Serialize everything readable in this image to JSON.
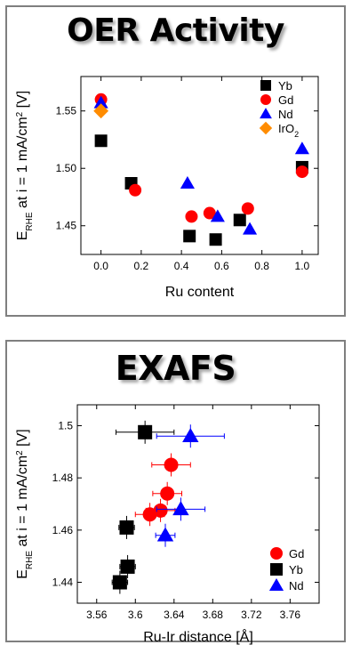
{
  "chart_data": [
    {
      "type": "scatter",
      "title": "OER Activity",
      "xlabel": "Ru content",
      "ylabel_main": "E",
      "ylabel_sub": "RHE",
      "ylabel_mid": " at i = 1 mA/cm",
      "ylabel_sup": "2",
      "ylabel_end": " [V]",
      "xlim": [
        -0.1,
        1.08
      ],
      "ylim": [
        1.425,
        1.58
      ],
      "xticks": [
        "0.0",
        "0.2",
        "0.4",
        "0.6",
        "0.8",
        "1.0"
      ],
      "xtick_values": [
        0.0,
        0.2,
        0.4,
        0.6,
        0.8,
        1.0
      ],
      "yticks": [
        "1.45",
        "1.50",
        "1.55"
      ],
      "ytick_values": [
        1.45,
        1.5,
        1.55
      ],
      "legend_position": "top-right",
      "series": [
        {
          "name": "Yb",
          "marker": "square",
          "color": "#000000",
          "points": [
            [
              0.0,
              1.524
            ],
            [
              0.15,
              1.487
            ],
            [
              0.44,
              1.441
            ],
            [
              0.57,
              1.438
            ],
            [
              0.69,
              1.455
            ],
            [
              1.0,
              1.501
            ]
          ]
        },
        {
          "name": "Gd",
          "marker": "circle",
          "color": "#ff0000",
          "points": [
            [
              0.0,
              1.56
            ],
            [
              0.17,
              1.481
            ],
            [
              0.45,
              1.458
            ],
            [
              0.54,
              1.461
            ],
            [
              0.73,
              1.465
            ],
            [
              1.0,
              1.497
            ]
          ]
        },
        {
          "name": "Nd",
          "marker": "triangle",
          "color": "#0000ff",
          "points": [
            [
              0.0,
              1.557
            ],
            [
              0.43,
              1.487
            ],
            [
              0.58,
              1.458
            ],
            [
              0.74,
              1.447
            ],
            [
              1.0,
              1.517
            ]
          ]
        },
        {
          "name": "IrO",
          "name_sub": "2",
          "marker": "diamond",
          "color": "#ff8c00",
          "points": [
            [
              0.0,
              1.55
            ]
          ]
        }
      ]
    },
    {
      "type": "scatter",
      "title": "EXAFS",
      "xlabel": "Ru-Ir distance [Å]",
      "ylabel_main": "E",
      "ylabel_sub": "RHE",
      "ylabel_mid": " at i = 1 mA/cm",
      "ylabel_sup": "2",
      "ylabel_end": " [V]",
      "xlim": [
        3.54,
        3.79
      ],
      "ylim": [
        1.432,
        1.508
      ],
      "xticks": [
        "3.56",
        "3.6",
        "3.64",
        "3.68",
        "3.72",
        "3.76"
      ],
      "xtick_values": [
        3.56,
        3.6,
        3.64,
        3.68,
        3.72,
        3.76
      ],
      "yticks": [
        "1.44",
        "1.46",
        "1.48",
        "1.5"
      ],
      "ytick_values": [
        1.44,
        1.46,
        1.48,
        1.5
      ],
      "legend_position": "bottom-right",
      "series": [
        {
          "name": "Gd",
          "marker": "circle",
          "color": "#ff0000",
          "points": [
            [
              3.637,
              1.485,
              0.02
            ],
            [
              3.633,
              1.474,
              0.015
            ],
            [
              3.626,
              1.4675,
              0.015
            ],
            [
              3.615,
              1.466,
              0.015
            ]
          ]
        },
        {
          "name": "Yb",
          "marker": "square",
          "color": "#000000",
          "points": [
            [
              3.61,
              1.4975,
              0.03
            ],
            [
              3.591,
              1.461,
              0.008
            ],
            [
              3.592,
              1.446,
              0.008
            ],
            [
              3.584,
              1.44,
              0.008
            ]
          ]
        },
        {
          "name": "Nd",
          "marker": "triangle",
          "color": "#0000ff",
          "points": [
            [
              3.657,
              1.496,
              0.035
            ],
            [
              3.647,
              1.468,
              0.025
            ],
            [
              3.631,
              1.458,
              0.01
            ]
          ]
        }
      ]
    }
  ]
}
